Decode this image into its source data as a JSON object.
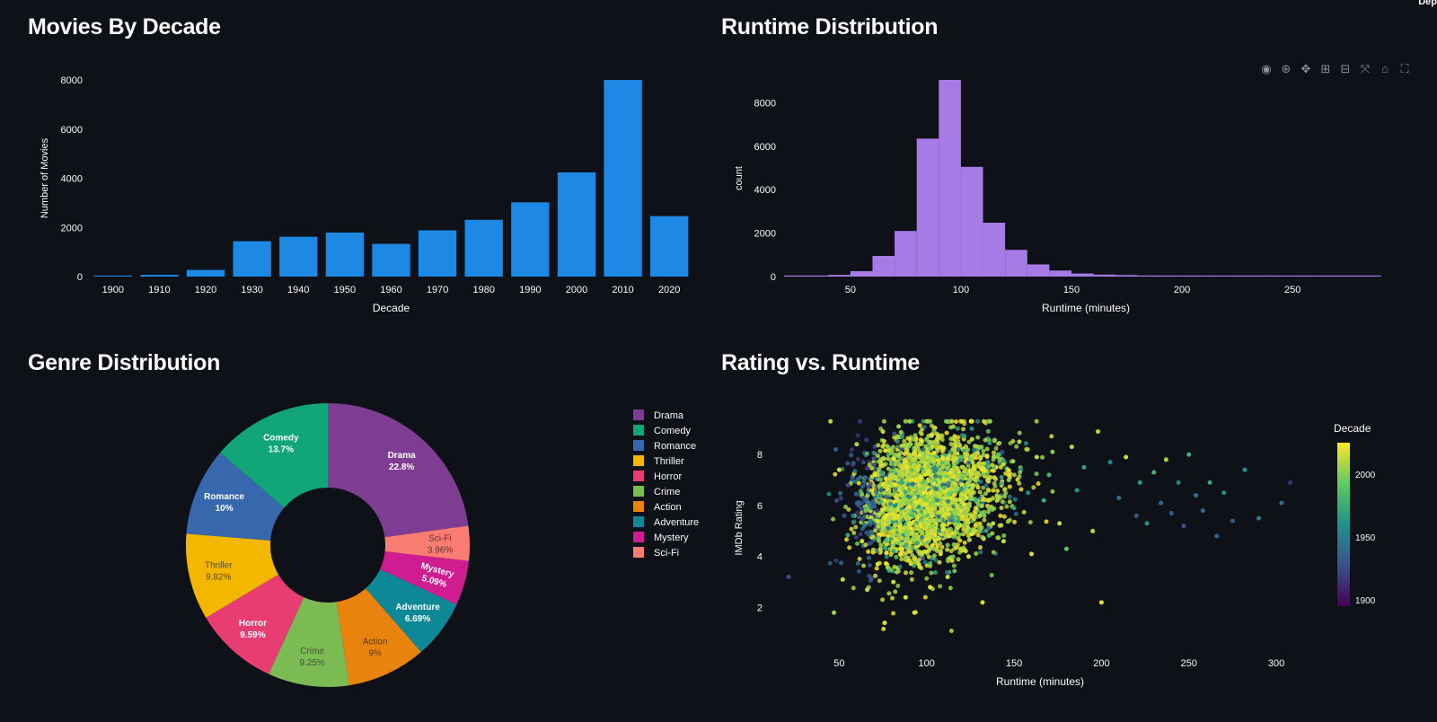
{
  "header": {
    "corner_text": "Dep"
  },
  "titles": {
    "decade": "Movies By Decade",
    "runtime": "Runtime Distribution",
    "genre": "Genre Distribution",
    "scatter": "Rating vs. Runtime"
  },
  "toolbar": [
    {
      "name": "camera-icon",
      "glyph": "◉"
    },
    {
      "name": "zoom-icon",
      "glyph": "⊕"
    },
    {
      "name": "pan-icon",
      "glyph": "✥"
    },
    {
      "name": "zoom-in-icon",
      "glyph": "⊞"
    },
    {
      "name": "zoom-out-icon",
      "glyph": "⊟"
    },
    {
      "name": "autoscale-icon",
      "glyph": "⤧"
    },
    {
      "name": "reset-axes-icon",
      "glyph": "⌂"
    },
    {
      "name": "fullscreen-icon",
      "glyph": "⛶"
    }
  ],
  "chart_data": [
    {
      "id": "decade",
      "type": "bar",
      "categories": [
        "1900",
        "1910",
        "1920",
        "1930",
        "1940",
        "1950",
        "1960",
        "1970",
        "1980",
        "1990",
        "2000",
        "2010",
        "2020"
      ],
      "values": [
        40,
        70,
        270,
        1440,
        1620,
        1790,
        1330,
        1880,
        2310,
        3020,
        4240,
        8000,
        2460
      ],
      "xlabel": "Decade",
      "ylabel": "Number of Movies",
      "ylim": [
        0,
        8000
      ],
      "yticks": [
        0,
        2000,
        4000,
        6000,
        8000
      ],
      "color": "#1e88e5",
      "grid": false
    },
    {
      "id": "runtime",
      "type": "bar",
      "bin_edges": [
        20,
        30,
        40,
        50,
        60,
        70,
        80,
        90,
        100,
        110,
        120,
        130,
        140,
        150,
        160,
        170,
        180,
        190,
        200,
        210,
        220,
        230,
        240,
        250,
        260,
        270,
        280,
        290
      ],
      "counts": [
        40,
        20,
        80,
        250,
        950,
        2100,
        6350,
        9050,
        5050,
        2480,
        1230,
        560,
        280,
        140,
        90,
        70,
        50,
        40,
        30,
        25,
        20,
        15,
        15,
        10,
        10,
        10,
        10
      ],
      "xlabel": "Runtime (minutes)",
      "ylabel": "count",
      "xlim": [
        20,
        293
      ],
      "ylim": [
        0,
        9050
      ],
      "xticks": [
        50,
        100,
        150,
        200,
        250
      ],
      "yticks": [
        0,
        2000,
        4000,
        6000,
        8000
      ],
      "color": "#a77be6",
      "grid": false
    },
    {
      "id": "genre",
      "type": "pie",
      "hole": true,
      "slices": [
        {
          "label": "Drama",
          "percent_label": "22.8%",
          "value": 22.8,
          "color": "#7e3d92",
          "text_color": "#ffffff"
        },
        {
          "label": "Sci-Fi",
          "percent_label": "3.96%",
          "value": 3.96,
          "color": "#fb7c72",
          "text_color": "#5a3430"
        },
        {
          "label": "Mystery",
          "percent_label": "5.09%",
          "value": 5.09,
          "color": "#cf1c90",
          "text_color": "#ffffff"
        },
        {
          "label": "Adventure",
          "percent_label": "6.69%",
          "value": 6.69,
          "color": "#0e8896",
          "text_color": "#ffffff"
        },
        {
          "label": "Action",
          "percent_label": "9%",
          "value": 9.0,
          "color": "#e8830d",
          "text_color": "#5a3a15"
        },
        {
          "label": "Crime",
          "percent_label": "9.25%",
          "value": 9.25,
          "color": "#7cba54",
          "text_color": "#3e5530"
        },
        {
          "label": "Horror",
          "percent_label": "9.59%",
          "value": 9.59,
          "color": "#e73d73",
          "text_color": "#ffffff"
        },
        {
          "label": "Thriller",
          "percent_label": "9.82%",
          "value": 9.82,
          "color": "#f3b700",
          "text_color": "#5e4a0a"
        },
        {
          "label": "Romance",
          "percent_label": "10%",
          "value": 10.0,
          "color": "#3767ad",
          "text_color": "#ffffff"
        },
        {
          "label": "Comedy",
          "percent_label": "13.7%",
          "value": 13.7,
          "color": "#11a578",
          "text_color": "#ffffff"
        }
      ],
      "legend": [
        "Drama",
        "Comedy",
        "Romance",
        "Thriller",
        "Horror",
        "Crime",
        "Action",
        "Adventure",
        "Mystery",
        "Sci-Fi"
      ],
      "legend_position": "right"
    },
    {
      "id": "scatter",
      "type": "scatter",
      "xlabel": "Runtime (minutes)",
      "ylabel": "IMDb Rating",
      "xlim": [
        20,
        320
      ],
      "ylim": [
        0.4,
        9.8
      ],
      "xticks": [
        50,
        100,
        150,
        200,
        250,
        300
      ],
      "yticks": [
        2,
        4,
        6,
        8
      ],
      "colorbar": {
        "title": "Decade",
        "ticks": [
          1900,
          1950,
          2000
        ],
        "range": [
          1895,
          2025
        ]
      },
      "points": [
        [
          21,
          3.2,
          1925
        ],
        [
          45,
          9.3,
          2010
        ],
        [
          47,
          1.8,
          2005
        ],
        [
          48,
          8.2,
          1930
        ],
        [
          50,
          7.4,
          2015
        ],
        [
          52,
          3.1,
          2012
        ],
        [
          55,
          6.8,
          1925
        ],
        [
          58,
          5.6,
          1945
        ],
        [
          60,
          8.4,
          2008
        ],
        [
          62,
          7.1,
          1938
        ],
        [
          63,
          4.6,
          2015
        ],
        [
          65,
          6.2,
          1935
        ],
        [
          66,
          2.7,
          2012
        ],
        [
          68,
          5.4,
          1950
        ],
        [
          70,
          7.6,
          1930
        ],
        [
          72,
          3.7,
          2016
        ],
        [
          74,
          6.6,
          1940
        ],
        [
          75,
          8.9,
          2012
        ],
        [
          76,
          1.4,
          2018
        ],
        [
          78,
          5.1,
          1955
        ],
        [
          80,
          7.2,
          2010
        ],
        [
          81,
          3.0,
          2014
        ],
        [
          82,
          6.0,
          1960
        ],
        [
          84,
          9.1,
          2005
        ],
        [
          85,
          4.3,
          2018
        ],
        [
          86,
          6.9,
          1975
        ],
        [
          88,
          2.4,
          2016
        ],
        [
          90,
          8.0,
          2012
        ],
        [
          92,
          5.6,
          1985
        ],
        [
          93,
          1.8,
          2019
        ],
        [
          95,
          7.4,
          2015
        ],
        [
          96,
          3.6,
          2017
        ],
        [
          98,
          6.3,
          2000
        ],
        [
          100,
          8.6,
          1995
        ],
        [
          102,
          2.8,
          2018
        ],
        [
          104,
          5.0,
          2012
        ],
        [
          106,
          7.9,
          1990
        ],
        [
          108,
          4.1,
          2017
        ],
        [
          110,
          6.7,
          1985
        ],
        [
          112,
          3.2,
          2014
        ],
        [
          115,
          8.2,
          2005
        ],
        [
          118,
          5.4,
          1975
        ],
        [
          120,
          7.1,
          1995
        ],
        [
          124,
          4.0,
          2016
        ],
        [
          126,
          8.6,
          2010
        ],
        [
          128,
          6.2,
          1980
        ],
        [
          132,
          2.2,
          2018
        ],
        [
          135,
          7.7,
          1965
        ],
        [
          138,
          5.3,
          2012
        ],
        [
          141,
          8.0,
          1990
        ],
        [
          144,
          4.6,
          2015
        ],
        [
          147,
          7.0,
          2000
        ],
        [
          150,
          5.9,
          1970
        ],
        [
          153,
          8.5,
          2008
        ],
        [
          158,
          6.5,
          1960
        ],
        [
          160,
          4.1,
          2017
        ],
        [
          163,
          7.9,
          2010
        ],
        [
          167,
          6.2,
          1975
        ],
        [
          170,
          7.2,
          1980
        ],
        [
          172,
          8.1,
          1998
        ],
        [
          176,
          5.3,
          2015
        ],
        [
          180,
          4.3,
          1990
        ],
        [
          183,
          8.3,
          2012
        ],
        [
          186,
          6.6,
          1960
        ],
        [
          190,
          7.5,
          1970
        ],
        [
          195,
          5.0,
          2012
        ],
        [
          198,
          8.9,
          2010
        ],
        [
          200,
          2.2,
          2020
        ],
        [
          205,
          7.7,
          1955
        ],
        [
          210,
          6.3,
          1940
        ],
        [
          214,
          7.9,
          2015
        ],
        [
          220,
          5.6,
          1930
        ],
        [
          222,
          6.9,
          1965
        ],
        [
          226,
          5.3,
          1960
        ],
        [
          230,
          7.3,
          1980
        ],
        [
          234,
          6.1,
          1940
        ],
        [
          237,
          7.8,
          2005
        ],
        [
          240,
          5.7,
          1935
        ],
        [
          244,
          6.9,
          1950
        ],
        [
          247,
          5.2,
          1928
        ],
        [
          250,
          8.0,
          1978
        ],
        [
          254,
          6.4,
          1945
        ],
        [
          258,
          5.8,
          1940
        ],
        [
          262,
          6.9,
          1970
        ],
        [
          266,
          4.8,
          1935
        ],
        [
          270,
          6.5,
          1960
        ],
        [
          275,
          5.4,
          1932
        ],
        [
          282,
          7.4,
          1960
        ],
        [
          290,
          5.5,
          1950
        ],
        [
          303,
          6.1,
          1940
        ],
        [
          308,
          6.9,
          1915
        ]
      ]
    }
  ]
}
